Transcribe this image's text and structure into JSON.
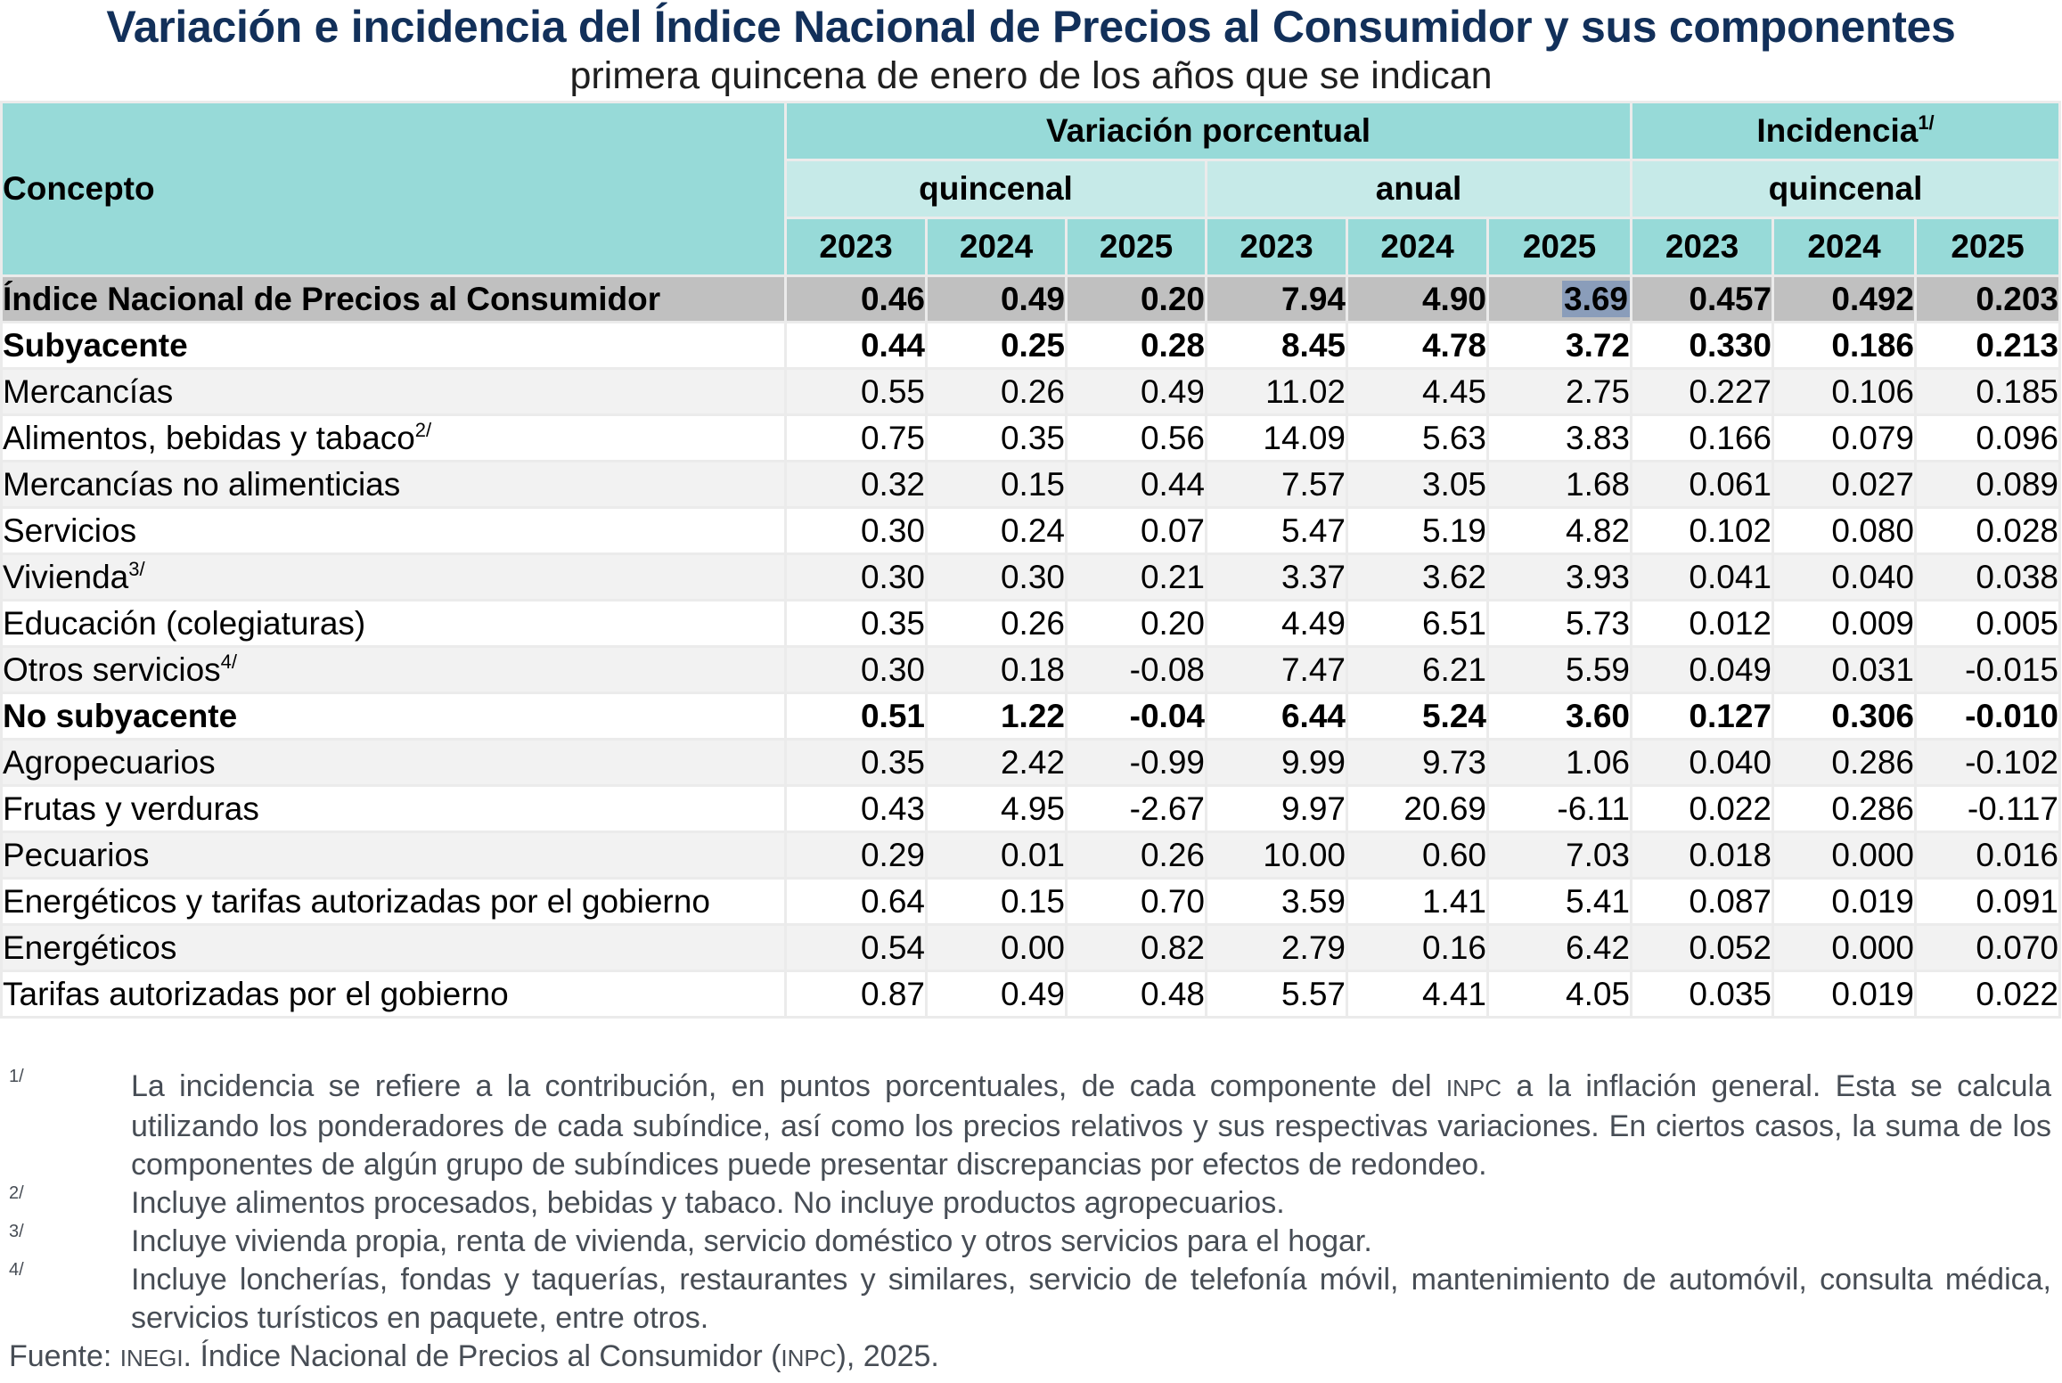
{
  "title": "Variación e incidencia del Índice Nacional de Precios al Consumidor y sus componentes",
  "subtitle": "primera quincena de enero de los años que se indican",
  "header": {
    "concepto": "Concepto",
    "variacion": "Variación porcentual",
    "incidencia": "Incidencia",
    "incidencia_note": "1/",
    "quincenal": "quincenal",
    "anual": "anual",
    "quincenal_inc": "quincenal",
    "years": [
      "2023",
      "2024",
      "2025",
      "2023",
      "2024",
      "2025",
      "2023",
      "2024",
      "2025"
    ]
  },
  "rows": [
    {
      "label": "Índice Nacional de Precios al Consumidor",
      "note": "",
      "values": [
        "0.46",
        "0.49",
        "0.20",
        "7.94",
        "4.90",
        "3.69",
        "0.457",
        "0.492",
        "0.203"
      ]
    },
    {
      "label": "Subyacente",
      "note": "",
      "values": [
        "0.44",
        "0.25",
        "0.28",
        "8.45",
        "4.78",
        "3.72",
        "0.330",
        "0.186",
        "0.213"
      ]
    },
    {
      "label": "Mercancías",
      "note": "",
      "values": [
        "0.55",
        "0.26",
        "0.49",
        "11.02",
        "4.45",
        "2.75",
        "0.227",
        "0.106",
        "0.185"
      ]
    },
    {
      "label": "Alimentos, bebidas y tabaco",
      "note": "2/",
      "values": [
        "0.75",
        "0.35",
        "0.56",
        "14.09",
        "5.63",
        "3.83",
        "0.166",
        "0.079",
        "0.096"
      ]
    },
    {
      "label": "Mercancías no alimenticias",
      "note": "",
      "values": [
        "0.32",
        "0.15",
        "0.44",
        "7.57",
        "3.05",
        "1.68",
        "0.061",
        "0.027",
        "0.089"
      ]
    },
    {
      "label": "Servicios",
      "note": "",
      "values": [
        "0.30",
        "0.24",
        "0.07",
        "5.47",
        "5.19",
        "4.82",
        "0.102",
        "0.080",
        "0.028"
      ]
    },
    {
      "label": "Vivienda",
      "note": "3/",
      "values": [
        "0.30",
        "0.30",
        "0.21",
        "3.37",
        "3.62",
        "3.93",
        "0.041",
        "0.040",
        "0.038"
      ]
    },
    {
      "label": "Educación (colegiaturas)",
      "note": "",
      "values": [
        "0.35",
        "0.26",
        "0.20",
        "4.49",
        "6.51",
        "5.73",
        "0.012",
        "0.009",
        "0.005"
      ]
    },
    {
      "label": "Otros servicios",
      "note": "4/",
      "values": [
        "0.30",
        "0.18",
        "-0.08",
        "7.47",
        "6.21",
        "5.59",
        "0.049",
        "0.031",
        "-0.015"
      ]
    },
    {
      "label": "No subyacente",
      "note": "",
      "values": [
        "0.51",
        "1.22",
        "-0.04",
        "6.44",
        "5.24",
        "3.60",
        "0.127",
        "0.306",
        "-0.010"
      ]
    },
    {
      "label": "Agropecuarios",
      "note": "",
      "values": [
        "0.35",
        "2.42",
        "-0.99",
        "9.99",
        "9.73",
        "1.06",
        "0.040",
        "0.286",
        "-0.102"
      ]
    },
    {
      "label": "Frutas y verduras",
      "note": "",
      "values": [
        "0.43",
        "4.95",
        "-2.67",
        "9.97",
        "20.69",
        "-6.11",
        "0.022",
        "0.286",
        "-0.117"
      ]
    },
    {
      "label": "Pecuarios",
      "note": "",
      "values": [
        "0.29",
        "0.01",
        "0.26",
        "10.00",
        "0.60",
        "7.03",
        "0.018",
        "0.000",
        "0.016"
      ]
    },
    {
      "label": "Energéticos y tarifas autorizadas por el gobierno",
      "note": "",
      "values": [
        "0.64",
        "0.15",
        "0.70",
        "3.59",
        "1.41",
        "5.41",
        "0.087",
        "0.019",
        "0.091"
      ]
    },
    {
      "label": "Energéticos",
      "note": "",
      "values": [
        "0.54",
        "0.00",
        "0.82",
        "2.79",
        "0.16",
        "6.42",
        "0.052",
        "0.000",
        "0.070"
      ]
    },
    {
      "label": "Tarifas autorizadas por el gobierno",
      "note": "",
      "values": [
        "0.87",
        "0.49",
        "0.48",
        "5.57",
        "4.41",
        "4.05",
        "0.035",
        "0.019",
        "0.022"
      ]
    }
  ],
  "notes": [
    {
      "mark": "1/",
      "pre": "La incidencia se refiere a la contribución, en puntos porcentuales, de cada componente del ",
      "abbr": "INPC",
      "post": " a la inflación general. Esta se calcula utilizando los ponderadores de cada subíndice, así como los precios relativos y sus respectivas variaciones. En ciertos casos, la suma de los componentes de algún grupo de subíndices puede presentar discrepancias por efectos de redondeo."
    },
    {
      "mark": "2/",
      "text": "Incluye alimentos procesados, bebidas y tabaco. No incluye productos agropecuarios."
    },
    {
      "mark": "3/",
      "text": "Incluye vivienda propia, renta de vivienda, servicio doméstico y otros servicios para el hogar."
    },
    {
      "mark": "4/",
      "text": "Incluye loncherías, fondas y taquerías, restaurantes y similares, servicio de telefonía móvil, mantenimiento de automóvil, consulta médica, servicios turísticos en paquete, entre otros."
    }
  ],
  "source": {
    "label": "Fuente: ",
    "org": "INEGI",
    "mid": ". Índice Nacional de Precios al Consumidor (",
    "abbr": "INPC",
    "end": "), 2025."
  },
  "colors": {
    "title": "#12305a",
    "header_dark": "#97dad8",
    "header_light": "#c6eae8",
    "total_row": "#c0c0c0",
    "alt_row": "#f2f2f2",
    "selection": "#8a9dba"
  }
}
